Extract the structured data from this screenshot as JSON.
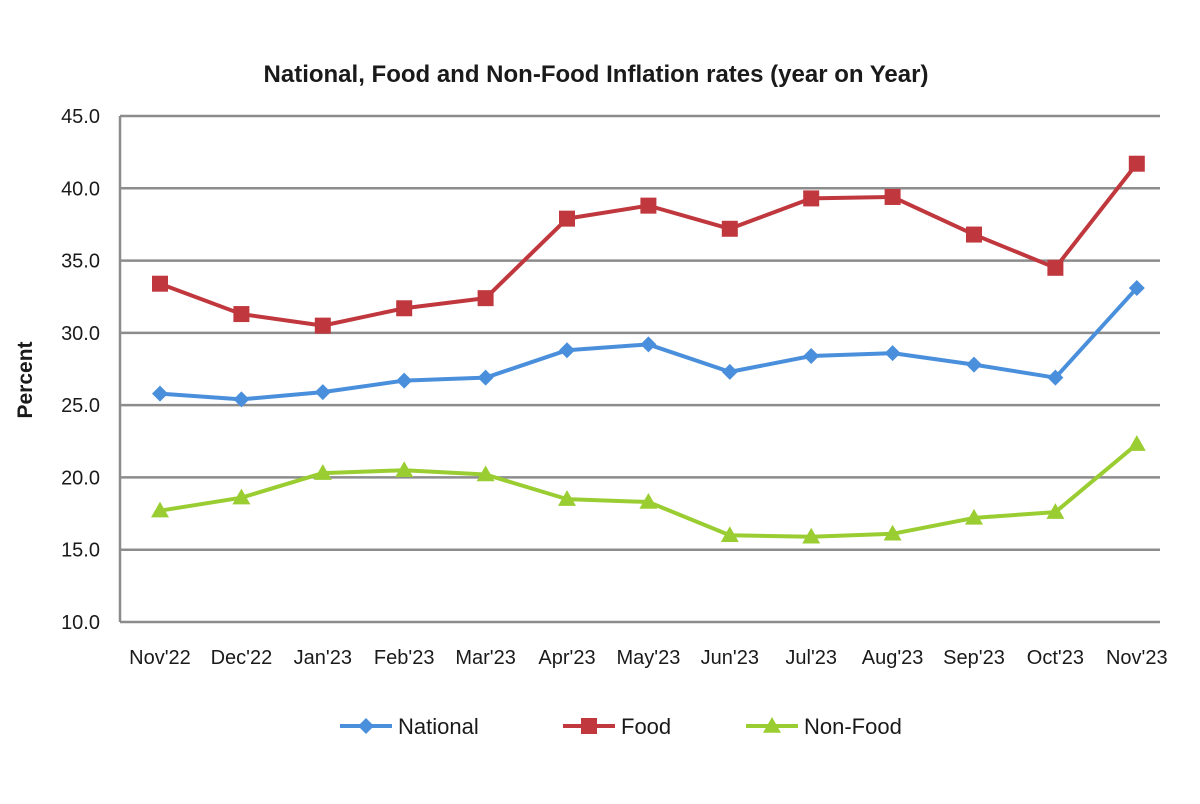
{
  "chart_data": {
    "type": "line",
    "title": "National, Food and Non-Food Inflation rates (year on Year)",
    "ylabel": "Percent",
    "xlabel": "",
    "categories": [
      "Nov'22",
      "Dec'22",
      "Jan'23",
      "Feb'23",
      "Mar'23",
      "Apr'23",
      "May'23",
      "Jun'23",
      "Jul'23",
      "Aug'23",
      "Sep'23",
      "Oct'23",
      "Nov'23"
    ],
    "ylim": [
      10,
      45
    ],
    "yticks": [
      "10.0",
      "15.0",
      "20.0",
      "25.0",
      "30.0",
      "35.0",
      "40.0",
      "45.0"
    ],
    "grid": true,
    "legend_position": "bottom",
    "series": [
      {
        "name": "National",
        "color": "#4a8fdc",
        "marker": "diamond",
        "values": [
          25.8,
          25.4,
          25.9,
          26.7,
          26.9,
          28.8,
          29.2,
          27.3,
          28.4,
          28.6,
          27.8,
          26.9,
          33.1
        ]
      },
      {
        "name": "Food",
        "color": "#c0383e",
        "marker": "square",
        "values": [
          33.4,
          31.3,
          30.5,
          31.7,
          32.4,
          37.9,
          38.8,
          37.2,
          39.3,
          39.4,
          36.8,
          34.5,
          41.7
        ]
      },
      {
        "name": "Non-Food",
        "color": "#9acd32",
        "marker": "triangle",
        "values": [
          17.7,
          18.6,
          20.3,
          20.5,
          20.2,
          18.5,
          18.3,
          16.0,
          15.9,
          16.1,
          17.2,
          17.6,
          22.3
        ]
      }
    ]
  }
}
